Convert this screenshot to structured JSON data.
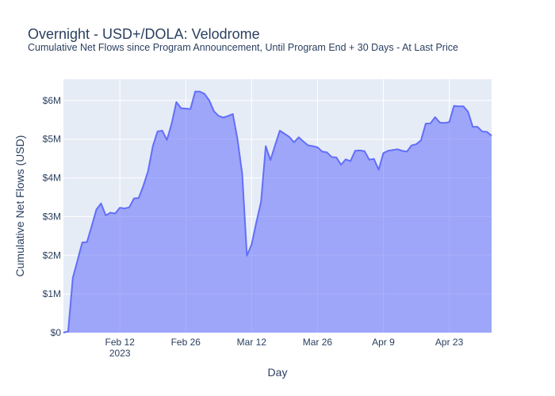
{
  "chart_data": {
    "type": "area",
    "title": "Overnight - USD+/DOLA: Velodrome",
    "subtitle": "Cumulative Net Flows since Program Announcement, Until Program End + 30 Days - At Last Price",
    "xlabel": "Day",
    "ylabel": "Cumulative Net Flows (USD)",
    "start_date": "2023-01-31",
    "end_date": "2023-05-02",
    "x_ticks": [
      {
        "date": "2023-02-12",
        "label": "Feb 12",
        "sublabel": "2023"
      },
      {
        "date": "2023-02-26",
        "label": "Feb 26",
        "sublabel": ""
      },
      {
        "date": "2023-03-12",
        "label": "Mar 12",
        "sublabel": ""
      },
      {
        "date": "2023-03-26",
        "label": "Mar 26",
        "sublabel": ""
      },
      {
        "date": "2023-04-09",
        "label": "Apr 9",
        "sublabel": ""
      },
      {
        "date": "2023-04-23",
        "label": "Apr 23",
        "sublabel": ""
      }
    ],
    "y_ticks": [
      {
        "value": 0,
        "label": "$0"
      },
      {
        "value": 1000000,
        "label": "$1M"
      },
      {
        "value": 2000000,
        "label": "$2M"
      },
      {
        "value": 3000000,
        "label": "$3M"
      },
      {
        "value": 4000000,
        "label": "$4M"
      },
      {
        "value": 5000000,
        "label": "$5M"
      },
      {
        "value": 6000000,
        "label": "$6M"
      }
    ],
    "ylim": [
      0,
      6550000
    ],
    "grid": true,
    "series": [
      {
        "color": "#636efa",
        "fill": "rgba(99,110,250,0.55)",
        "points": [
          [
            "2023-01-31",
            0
          ],
          [
            "2023-02-01",
            30000
          ],
          [
            "2023-02-02",
            1420000
          ],
          [
            "2023-02-03",
            1870000
          ],
          [
            "2023-02-04",
            2330000
          ],
          [
            "2023-02-05",
            2340000
          ],
          [
            "2023-02-06",
            2750000
          ],
          [
            "2023-02-07",
            3180000
          ],
          [
            "2023-02-08",
            3340000
          ],
          [
            "2023-02-09",
            3030000
          ],
          [
            "2023-02-10",
            3100000
          ],
          [
            "2023-02-11",
            3080000
          ],
          [
            "2023-02-12",
            3230000
          ],
          [
            "2023-02-13",
            3210000
          ],
          [
            "2023-02-14",
            3240000
          ],
          [
            "2023-02-15",
            3470000
          ],
          [
            "2023-02-16",
            3480000
          ],
          [
            "2023-02-17",
            3800000
          ],
          [
            "2023-02-18",
            4180000
          ],
          [
            "2023-02-19",
            4820000
          ],
          [
            "2023-02-20",
            5200000
          ],
          [
            "2023-02-21",
            5220000
          ],
          [
            "2023-02-22",
            4980000
          ],
          [
            "2023-02-23",
            5400000
          ],
          [
            "2023-02-24",
            5960000
          ],
          [
            "2023-02-25",
            5800000
          ],
          [
            "2023-02-26",
            5790000
          ],
          [
            "2023-02-27",
            5780000
          ],
          [
            "2023-02-28",
            6230000
          ],
          [
            "2023-03-01",
            6230000
          ],
          [
            "2023-03-02",
            6170000
          ],
          [
            "2023-03-03",
            6000000
          ],
          [
            "2023-03-04",
            5720000
          ],
          [
            "2023-03-05",
            5600000
          ],
          [
            "2023-03-06",
            5560000
          ],
          [
            "2023-03-07",
            5600000
          ],
          [
            "2023-03-08",
            5650000
          ],
          [
            "2023-03-09",
            5000000
          ],
          [
            "2023-03-10",
            4100000
          ],
          [
            "2023-03-11",
            1990000
          ],
          [
            "2023-03-12",
            2280000
          ],
          [
            "2023-03-13",
            2850000
          ],
          [
            "2023-03-14",
            3380000
          ],
          [
            "2023-03-15",
            4820000
          ],
          [
            "2023-03-16",
            4460000
          ],
          [
            "2023-03-17",
            4850000
          ],
          [
            "2023-03-18",
            5220000
          ],
          [
            "2023-03-19",
            5140000
          ],
          [
            "2023-03-20",
            5060000
          ],
          [
            "2023-03-21",
            4920000
          ],
          [
            "2023-03-22",
            5050000
          ],
          [
            "2023-03-23",
            4940000
          ],
          [
            "2023-03-24",
            4840000
          ],
          [
            "2023-03-25",
            4820000
          ],
          [
            "2023-03-26",
            4790000
          ],
          [
            "2023-03-27",
            4680000
          ],
          [
            "2023-03-28",
            4660000
          ],
          [
            "2023-03-29",
            4540000
          ],
          [
            "2023-03-30",
            4530000
          ],
          [
            "2023-03-31",
            4340000
          ],
          [
            "2023-04-01",
            4480000
          ],
          [
            "2023-04-02",
            4430000
          ],
          [
            "2023-04-03",
            4700000
          ],
          [
            "2023-04-04",
            4710000
          ],
          [
            "2023-04-05",
            4690000
          ],
          [
            "2023-04-06",
            4470000
          ],
          [
            "2023-04-07",
            4490000
          ],
          [
            "2023-04-08",
            4210000
          ],
          [
            "2023-04-09",
            4640000
          ],
          [
            "2023-04-10",
            4700000
          ],
          [
            "2023-04-11",
            4720000
          ],
          [
            "2023-04-12",
            4740000
          ],
          [
            "2023-04-13",
            4700000
          ],
          [
            "2023-04-14",
            4680000
          ],
          [
            "2023-04-15",
            4840000
          ],
          [
            "2023-04-16",
            4870000
          ],
          [
            "2023-04-17",
            4970000
          ],
          [
            "2023-04-18",
            5400000
          ],
          [
            "2023-04-19",
            5410000
          ],
          [
            "2023-04-20",
            5570000
          ],
          [
            "2023-04-21",
            5430000
          ],
          [
            "2023-04-22",
            5420000
          ],
          [
            "2023-04-23",
            5440000
          ],
          [
            "2023-04-24",
            5860000
          ],
          [
            "2023-04-25",
            5850000
          ],
          [
            "2023-04-26",
            5850000
          ],
          [
            "2023-04-27",
            5710000
          ],
          [
            "2023-04-28",
            5320000
          ],
          [
            "2023-04-29",
            5320000
          ],
          [
            "2023-04-30",
            5200000
          ],
          [
            "2023-05-01",
            5190000
          ],
          [
            "2023-05-02",
            5090000
          ],
          [
            "2023-05-03",
            5090000
          ]
        ]
      }
    ]
  }
}
